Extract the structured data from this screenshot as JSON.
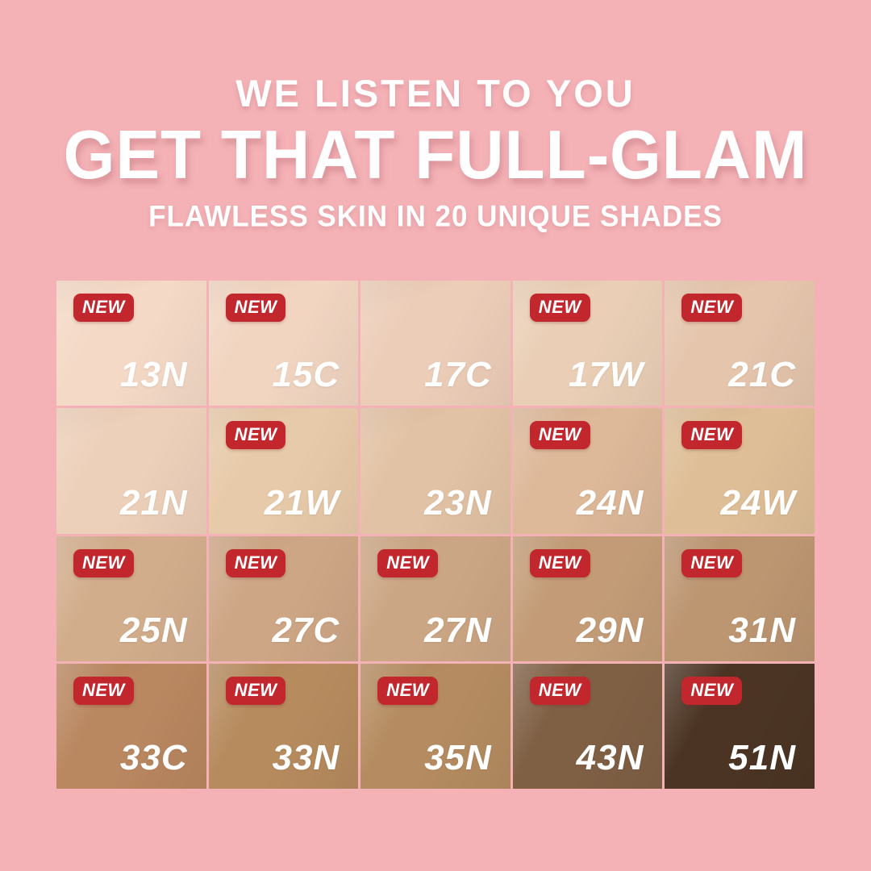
{
  "page": {
    "background": "#F4B2B6",
    "header": {
      "line1": "WE LISTEN TO YOU",
      "line2": "GET THAT FULL-GLAM",
      "line3": "FLAWLESS SKIN IN 20 UNIQUE SHADES"
    },
    "badge": {
      "label": "NEW",
      "bg": "#C1272D",
      "text_color": "#FFFFFF"
    },
    "shades": [
      {
        "code": "13N",
        "color": "#F4D9C6",
        "new": true
      },
      {
        "code": "15C",
        "color": "#F1D5C1",
        "new": true
      },
      {
        "code": "17C",
        "color": "#ECCDB8",
        "new": false
      },
      {
        "code": "17W",
        "color": "#EACFB6",
        "new": true
      },
      {
        "code": "21C",
        "color": "#E5C5AC",
        "new": true
      },
      {
        "code": "21N",
        "color": "#EDD0BA",
        "new": false
      },
      {
        "code": "21W",
        "color": "#E7CAA9",
        "new": true
      },
      {
        "code": "23N",
        "color": "#E2C2A4",
        "new": false
      },
      {
        "code": "24N",
        "color": "#DDB899",
        "new": true
      },
      {
        "code": "24W",
        "color": "#DEBE97",
        "new": true
      },
      {
        "code": "25N",
        "color": "#D2AD8C",
        "new": true
      },
      {
        "code": "27C",
        "color": "#CDA685",
        "new": true
      },
      {
        "code": "27N",
        "color": "#CBA684",
        "new": true
      },
      {
        "code": "29N",
        "color": "#C39C77",
        "new": true
      },
      {
        "code": "31N",
        "color": "#BC9571",
        "new": true
      },
      {
        "code": "33C",
        "color": "#B98760",
        "new": true
      },
      {
        "code": "33N",
        "color": "#B68B5E",
        "new": true
      },
      {
        "code": "35N",
        "color": "#B58C61",
        "new": true
      },
      {
        "code": "43N",
        "color": "#7F6045",
        "new": true
      },
      {
        "code": "51N",
        "color": "#4B3423",
        "new": true
      }
    ]
  }
}
